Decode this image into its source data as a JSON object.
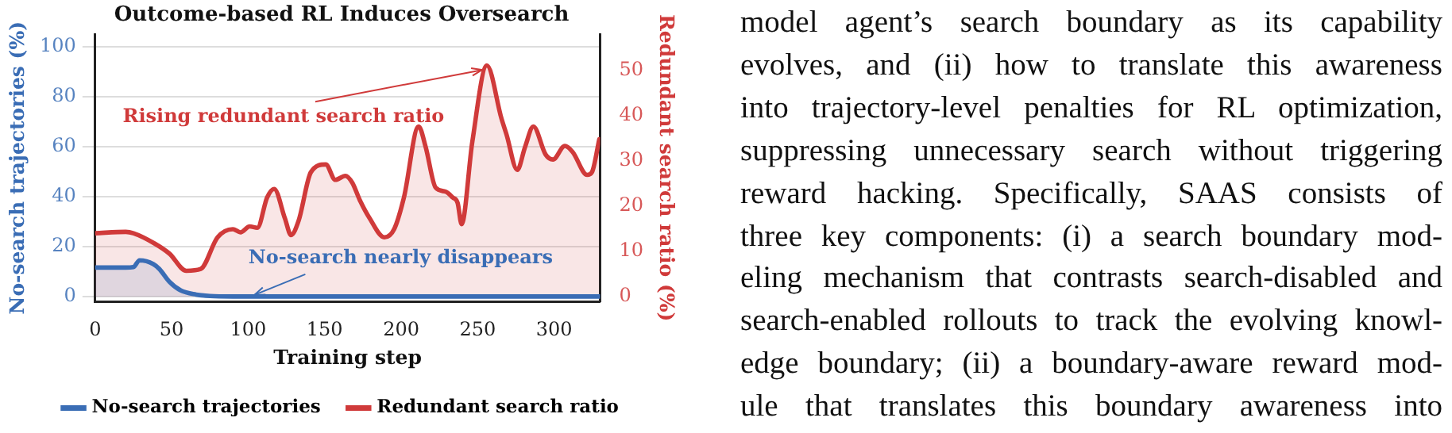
{
  "chart_data": {
    "type": "area",
    "title": "Outcome-based RL Induces Oversearch",
    "xlabel": "Training step",
    "ylabel": "No-search trajectories (%)",
    "y2label": "Redundant search ratio (%)",
    "xlim": [
      0,
      330
    ],
    "xticks": [
      0,
      50,
      100,
      150,
      200,
      250,
      300
    ],
    "ylim": [
      -2,
      105
    ],
    "yticks": [
      0,
      20,
      40,
      60,
      80,
      100
    ],
    "y2lim": [
      -1.1,
      58
    ],
    "y2ticks": [
      0,
      10,
      20,
      30,
      40,
      50
    ],
    "grid": "y",
    "legend": "bottom",
    "line_style": "solid",
    "marker": "none",
    "series": [
      {
        "name": "No-search trajectories",
        "color": "#3a6db5",
        "x": [
          0,
          20,
          25,
          29,
          38,
          42,
          48.5,
          56,
          66,
          75,
          90,
          120,
          200,
          330
        ],
        "values": [
          11.6,
          11.6,
          11.8,
          14.5,
          13,
          11,
          5.9,
          2.4,
          0.8,
          0.2,
          0,
          0,
          0,
          0
        ]
      },
      {
        "name": "Redundant search ratio",
        "color": "#d03a3a",
        "axis": "y2",
        "x": [
          0,
          20,
          25,
          39,
          48.5,
          59.6,
          69,
          80,
          90,
          95,
          101,
          106,
          112.4,
          117,
          124,
          128,
          133,
          141,
          150.7,
          157,
          163.5,
          168,
          173,
          179.4,
          189,
          195.4,
          201.8,
          211.4,
          216,
          222.5,
          229,
          233.7,
          236.9,
          239.5,
          246.5,
          256,
          265.6,
          268.8,
          275.9,
          281,
          286.4,
          294.4,
          299.2,
          307,
          312,
          321.6,
          324.7,
          329.5
        ],
        "values": [
          14,
          14.3,
          14,
          11.7,
          9.5,
          5.7,
          6.1,
          13.1,
          14.9,
          14.2,
          15.5,
          15.2,
          21.9,
          23.8,
          17.3,
          13.6,
          16.8,
          27.5,
          29.2,
          25.8,
          26.7,
          25.2,
          21.3,
          17.3,
          13.1,
          14.9,
          21.9,
          37.6,
          33.1,
          24.1,
          23.2,
          21.9,
          20.7,
          16,
          34.2,
          51.1,
          39.3,
          35.9,
          28,
          33.1,
          37.6,
          31.4,
          30.3,
          33.3,
          32,
          26.9,
          27.5,
          34.8
        ]
      }
    ],
    "annotations": [
      {
        "text": "Rising redundant search ratio",
        "x": 256,
        "y": 92
      },
      {
        "text": "No-search nearly disappears",
        "x": 101,
        "y": 0
      },
      "model agent’s search boundary as its capability",
      "evolves, and (ii) how to translate this awareness",
      "into trajectory-level penalties for RL optimization,",
      "suppressing unnecessary search without triggering",
      "reward hacking.  Specifically, SAAS consists of",
      "three key components: (i) a search boundary mod-",
      "eling mechanism that contrasts search-disabled and",
      "search-enabled rollouts to track the evolving knowl-",
      "edge boundary; (ii) a boundary-aware reward mod-",
      "ule that translates this boundary awareness into"
    ]
  }
}
